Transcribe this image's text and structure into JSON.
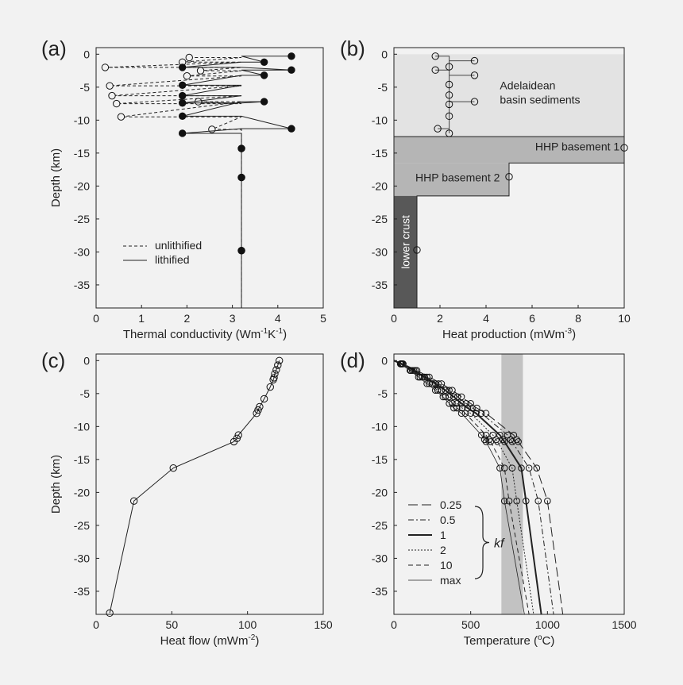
{
  "chart_data": [
    {
      "panel": "(a)",
      "type": "line",
      "xlabel_main": "Thermal conductivity (Wm",
      "xlabel_sup1": "-1",
      "xlabel_mid": "K",
      "xlabel_sup2": "-1",
      "xlabel_end": ")",
      "ylabel": "Depth (km)",
      "xlim": [
        0,
        5
      ],
      "ylim": [
        -38.5,
        1
      ],
      "xticks": [
        0,
        1,
        2,
        3,
        4,
        5
      ],
      "yticks": [
        0,
        -5,
        -10,
        -15,
        -20,
        -25,
        -30,
        -35
      ],
      "legend": {
        "position": "bottom-left",
        "entries": [
          "unlithified",
          "lithified"
        ]
      },
      "series": [
        {
          "name": "unlithified",
          "style": "dashed",
          "marker": "open",
          "points": [
            {
              "x": 2.05,
              "y": -0.5
            },
            {
              "x": 1.9,
              "y": -1.2
            },
            {
              "x": 0.2,
              "y": -2.0
            },
            {
              "x": 2.3,
              "y": -2.5
            },
            {
              "x": 2.0,
              "y": -3.3
            },
            {
              "x": 0.3,
              "y": -4.8
            },
            {
              "x": 0.35,
              "y": -6.3
            },
            {
              "x": 0.45,
              "y": -7.5
            },
            {
              "x": 2.25,
              "y": -7.2
            },
            {
              "x": 0.55,
              "y": -9.5
            },
            {
              "x": 2.55,
              "y": -11.4
            },
            {
              "x": 3.2,
              "y": -14.3
            },
            {
              "x": 3.2,
              "y": -18.7
            },
            {
              "x": 3.2,
              "y": -29.8
            }
          ]
        },
        {
          "name": "lithified",
          "style": "solid",
          "marker": "filled",
          "points": [
            {
              "x": 4.3,
              "y": -0.3
            },
            {
              "x": 3.7,
              "y": -1.2
            },
            {
              "x": 1.9,
              "y": -2.0
            },
            {
              "x": 4.3,
              "y": -2.4
            },
            {
              "x": 3.7,
              "y": -3.2
            },
            {
              "x": 1.9,
              "y": -4.7
            },
            {
              "x": 1.9,
              "y": -6.3
            },
            {
              "x": 1.9,
              "y": -7.4
            },
            {
              "x": 3.7,
              "y": -7.2
            },
            {
              "x": 1.9,
              "y": -9.4
            },
            {
              "x": 4.3,
              "y": -11.3
            },
            {
              "x": 1.9,
              "y": -12.0
            },
            {
              "x": 3.2,
              "y": -14.3
            },
            {
              "x": 3.2,
              "y": -18.7
            },
            {
              "x": 3.2,
              "y": -29.8
            }
          ]
        }
      ]
    },
    {
      "panel": "(b)",
      "type": "area",
      "xlabel_main": "Heat production (mWm",
      "xlabel_sup": "-3",
      "xlabel_end": ")",
      "xlim": [
        0,
        10
      ],
      "ylim": [
        -38.5,
        1
      ],
      "xticks": [
        0,
        2,
        4,
        6,
        8,
        10
      ],
      "yticks": [
        0,
        -5,
        -10,
        -15,
        -20,
        -25,
        -30,
        -35
      ],
      "regions": [
        {
          "label_lines": [
            "Adelaidean",
            "basin sediments"
          ],
          "x": [
            0,
            10
          ],
          "y": [
            0,
            -12.5
          ],
          "color": "#e3e3e3"
        },
        {
          "label": "HHP basement 1",
          "x": [
            0,
            10
          ],
          "y": [
            -12.5,
            -16.5
          ],
          "color": "#b5b5b5"
        },
        {
          "label": "HHP basement 2",
          "x": [
            0,
            5
          ],
          "y": [
            -16.5,
            -21.5
          ],
          "color": "#b5b5b5"
        },
        {
          "label": "lower crust",
          "x": [
            0,
            1
          ],
          "y": [
            -21.5,
            -38.5
          ],
          "color": "#585858"
        }
      ],
      "profile": [
        {
          "x": 1.8,
          "y": -0.3
        },
        {
          "x": 3.5,
          "y": -1.0
        },
        {
          "x": 2.4,
          "y": -1.9
        },
        {
          "x": 1.8,
          "y": -2.4
        },
        {
          "x": 3.5,
          "y": -3.2
        },
        {
          "x": 2.4,
          "y": -4.6
        },
        {
          "x": 2.4,
          "y": -6.2
        },
        {
          "x": 3.5,
          "y": -7.2
        },
        {
          "x": 2.4,
          "y": -7.6
        },
        {
          "x": 2.4,
          "y": -9.4
        },
        {
          "x": 1.9,
          "y": -11.3
        },
        {
          "x": 2.4,
          "y": -12.0
        },
        {
          "x": 10,
          "y": -14.2
        },
        {
          "x": 5.0,
          "y": -18.6
        },
        {
          "x": 1.0,
          "y": -29.7
        }
      ]
    },
    {
      "panel": "(c)",
      "type": "line",
      "xlabel_main": "Heat flow (mWm",
      "xlabel_sup": "-2",
      "xlabel_end": ")",
      "ylabel": "Depth (km)",
      "xlim": [
        0,
        150
      ],
      "ylim": [
        -38.5,
        1
      ],
      "xticks": [
        0,
        50,
        100,
        150
      ],
      "yticks": [
        0,
        -5,
        -10,
        -15,
        -20,
        -25,
        -30,
        -35
      ],
      "points": [
        {
          "x": 121,
          "y": 0
        },
        {
          "x": 120,
          "y": -0.7
        },
        {
          "x": 119,
          "y": -1.4
        },
        {
          "x": 118,
          "y": -2.0
        },
        {
          "x": 117.5,
          "y": -2.6
        },
        {
          "x": 117,
          "y": -2.9
        },
        {
          "x": 115,
          "y": -4.0
        },
        {
          "x": 111,
          "y": -5.8
        },
        {
          "x": 108,
          "y": -7.0
        },
        {
          "x": 107,
          "y": -7.5
        },
        {
          "x": 106,
          "y": -8.0
        },
        {
          "x": 94,
          "y": -11.3
        },
        {
          "x": 93,
          "y": -11.8
        },
        {
          "x": 91,
          "y": -12.3
        },
        {
          "x": 51,
          "y": -16.3
        },
        {
          "x": 25,
          "y": -21.3
        },
        {
          "x": 9,
          "y": -38.3
        }
      ]
    },
    {
      "panel": "(d)",
      "type": "line",
      "xlabel_main": "Temperature (",
      "xlabel_sup": "o",
      "xlabel_end": "C)",
      "xlim": [
        0,
        1500
      ],
      "ylim": [
        -38.5,
        1
      ],
      "xticks": [
        0,
        500,
        1000,
        1500
      ],
      "yticks": [
        0,
        -5,
        -10,
        -15,
        -20,
        -25,
        -30,
        -35
      ],
      "band": {
        "x": [
          700,
          840
        ],
        "color": "#c2c2c2"
      },
      "brace_label": "kf",
      "legend": {
        "position": "bottom-left"
      },
      "depths": [
        0,
        -0.5,
        -1.5,
        -2.5,
        -3.5,
        -4.5,
        -5.5,
        -6.5,
        -7.2,
        -8.0,
        -11.3,
        -12.0,
        -12.3,
        -16.3,
        -21.3,
        -38.5
      ],
      "series": [
        {
          "name": "0.25",
          "style": "longdash",
          "markers_through": 15,
          "temps": [
            0,
            60,
            150,
            230,
            310,
            380,
            440,
            500,
            540,
            600,
            780,
            800,
            810,
            930,
            1000,
            1100
          ]
        },
        {
          "name": "0.5",
          "style": "dashdot",
          "markers_through": 15,
          "temps": [
            0,
            55,
            140,
            215,
            290,
            360,
            415,
            470,
            510,
            570,
            740,
            760,
            770,
            880,
            940,
            1040
          ]
        },
        {
          "name": "1",
          "style": "solid-thick",
          "markers_through": 15,
          "temps": [
            0,
            50,
            130,
            200,
            270,
            335,
            390,
            440,
            480,
            535,
            690,
            710,
            720,
            830,
            860,
            960
          ]
        },
        {
          "name": "2",
          "style": "dotted",
          "markers_through": 15,
          "temps": [
            0,
            47,
            120,
            185,
            250,
            310,
            360,
            410,
            445,
            500,
            645,
            665,
            675,
            770,
            800,
            910
          ]
        },
        {
          "name": "10",
          "style": "dashed",
          "markers_through": 15,
          "temps": [
            0,
            44,
            110,
            170,
            230,
            285,
            335,
            380,
            410,
            465,
            600,
            620,
            630,
            720,
            750,
            880
          ]
        },
        {
          "name": "max",
          "style": "solid-thin",
          "markers_through": 15,
          "temps": [
            0,
            42,
            105,
            160,
            215,
            270,
            320,
            360,
            390,
            440,
            570,
            590,
            600,
            690,
            720,
            850
          ]
        }
      ]
    }
  ]
}
